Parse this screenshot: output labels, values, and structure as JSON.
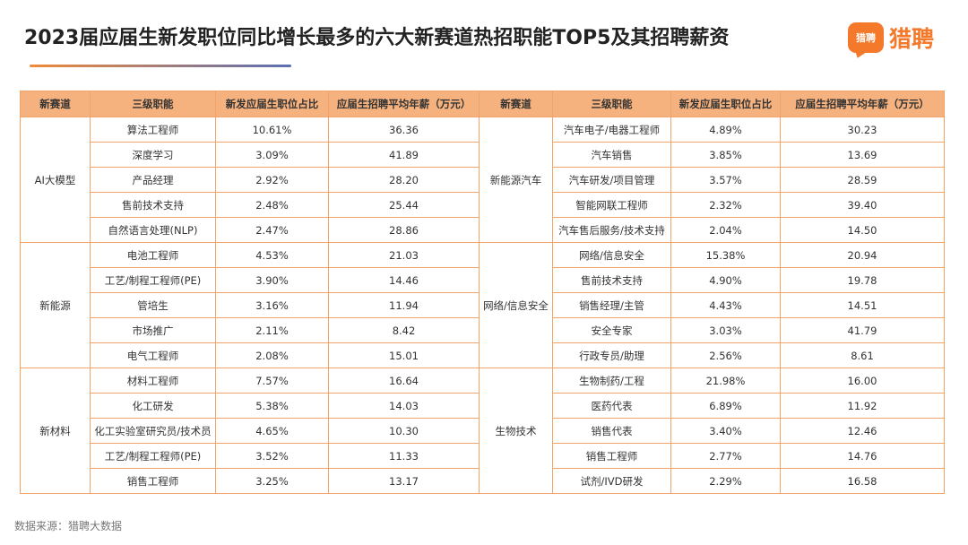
{
  "title": "2023届应届生新发职位同比增长最多的六大新赛道热招职能TOP5及其招聘薪资",
  "logo": {
    "badge": "猎聘",
    "text": "猎聘"
  },
  "columns": [
    "新赛道",
    "三级职能",
    "新发应届生职位占比",
    "应届生招聘平均年薪（万元）",
    "新赛道",
    "三级职能",
    "新发应届生职位占比",
    "应届生招聘平均年薪（万元）"
  ],
  "rows": [
    {
      "left_track": "AI大模型",
      "left": [
        "算法工程师",
        "10.61%",
        "36.36"
      ],
      "right_track": "新能源汽车",
      "right": [
        "汽车电子/电器工程师",
        "4.89%",
        "30.23"
      ]
    },
    {
      "left": [
        "深度学习",
        "3.09%",
        "41.89"
      ],
      "right": [
        "汽车销售",
        "3.85%",
        "13.69"
      ]
    },
    {
      "left": [
        "产品经理",
        "2.92%",
        "28.20"
      ],
      "right": [
        "汽车研发/项目管理",
        "3.57%",
        "28.59"
      ]
    },
    {
      "left": [
        "售前技术支持",
        "2.48%",
        "25.44"
      ],
      "right": [
        "智能网联工程师",
        "2.32%",
        "39.40"
      ]
    },
    {
      "left": [
        "自然语言处理(NLP)",
        "2.47%",
        "28.86"
      ],
      "right": [
        "汽车售后服务/技术支持",
        "2.04%",
        "14.50"
      ]
    },
    {
      "left_track": "新能源",
      "left": [
        "电池工程师",
        "4.53%",
        "21.03"
      ],
      "right_track": "网络/信息安全",
      "right": [
        "网络/信息安全",
        "15.38%",
        "20.94"
      ]
    },
    {
      "left": [
        "工艺/制程工程师(PE)",
        "3.90%",
        "14.46"
      ],
      "right": [
        "售前技术支持",
        "4.90%",
        "19.78"
      ]
    },
    {
      "left": [
        "管培生",
        "3.16%",
        "11.94"
      ],
      "right": [
        "销售经理/主管",
        "4.43%",
        "14.51"
      ]
    },
    {
      "left": [
        "市场推广",
        "2.11%",
        "8.42"
      ],
      "right": [
        "安全专家",
        "3.03%",
        "41.79"
      ]
    },
    {
      "left": [
        "电气工程师",
        "2.08%",
        "15.01"
      ],
      "right": [
        "行政专员/助理",
        "2.56%",
        "8.61"
      ]
    },
    {
      "left_track": "新材料",
      "left": [
        "材料工程师",
        "7.57%",
        "16.64"
      ],
      "right_track": "生物技术",
      "right": [
        "生物制药/工程",
        "21.98%",
        "16.00"
      ]
    },
    {
      "left": [
        "化工研发",
        "5.38%",
        "14.03"
      ],
      "right": [
        "医药代表",
        "6.89%",
        "11.92"
      ]
    },
    {
      "left": [
        "化工实验室研究员/技术员",
        "4.65%",
        "10.30"
      ],
      "right": [
        "销售代表",
        "3.40%",
        "12.46"
      ]
    },
    {
      "left": [
        "工艺/制程工程师(PE)",
        "3.52%",
        "11.33"
      ],
      "right": [
        "销售工程师",
        "2.77%",
        "14.76"
      ]
    },
    {
      "left": [
        "销售工程师",
        "3.25%",
        "13.17"
      ],
      "right": [
        "试剂/IVD研发",
        "2.29%",
        "16.58"
      ]
    }
  ],
  "source": "数据来源：猎聘大数据"
}
